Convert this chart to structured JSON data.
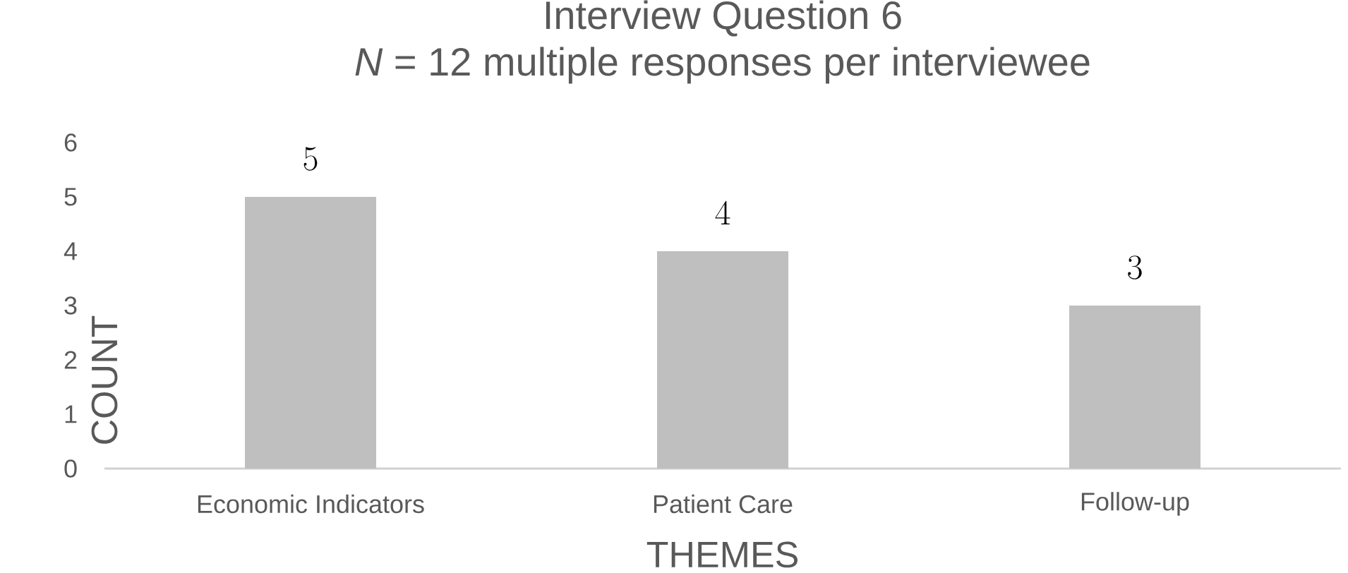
{
  "chart_data": {
    "type": "bar",
    "title": "Interview Question 6",
    "subtitle": "*N* = 12 multiple responses per interviewee",
    "xlabel": "THEMES",
    "ylabel": "COUNT",
    "categories": [
      "Economic Indicators",
      "Patient Care",
      "Follow-up"
    ],
    "values": [
      5,
      4,
      3
    ],
    "color": "#bfbfbf",
    "ylim": [
      0,
      6
    ],
    "yticks": [
      0,
      1,
      2,
      3,
      4,
      5,
      6
    ],
    "data_labels": true
  }
}
